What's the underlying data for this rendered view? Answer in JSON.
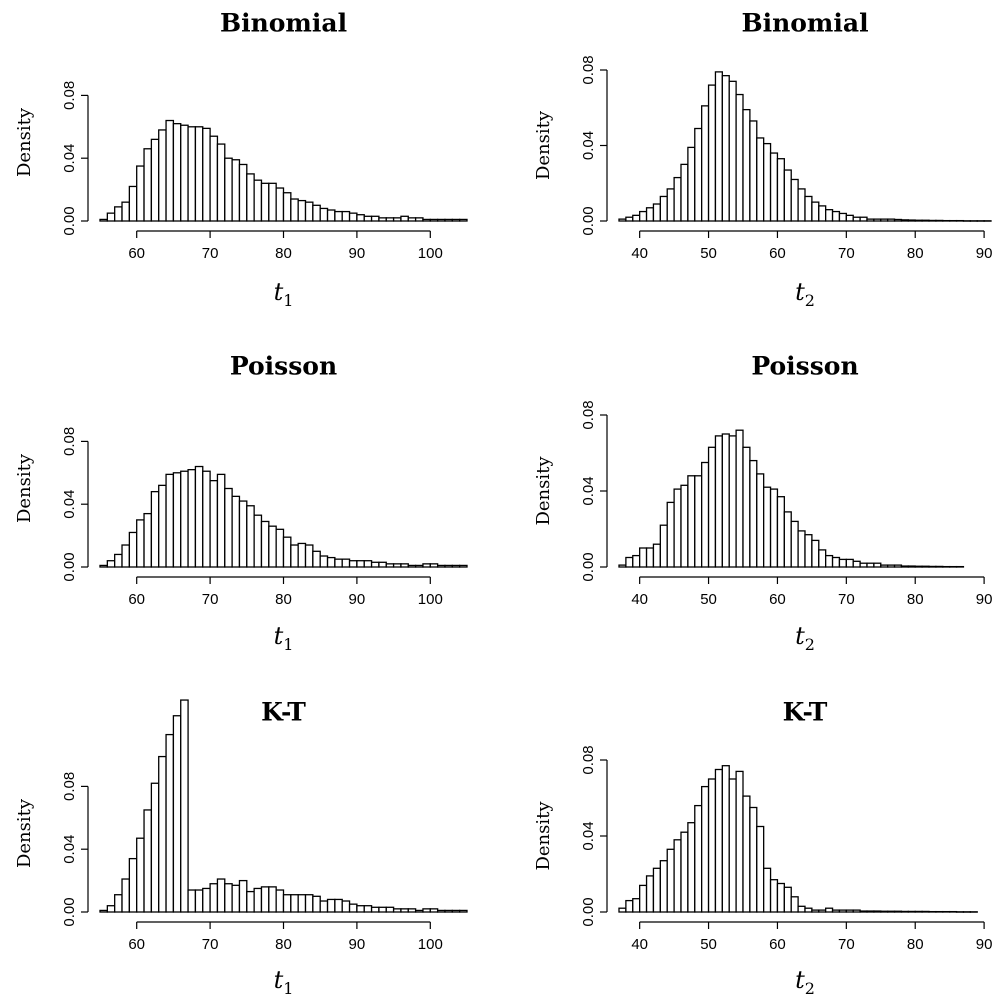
{
  "chart_data": [
    {
      "type": "bar",
      "title": "Binomial",
      "ylabel": "Density",
      "xlabel": "t",
      "xlabel_sub": "1",
      "x_start": 55,
      "bin_width": 1,
      "values": [
        0.001,
        0.005,
        0.009,
        0.012,
        0.022,
        0.035,
        0.046,
        0.052,
        0.058,
        0.064,
        0.062,
        0.061,
        0.06,
        0.06,
        0.059,
        0.054,
        0.049,
        0.04,
        0.039,
        0.036,
        0.03,
        0.026,
        0.024,
        0.024,
        0.021,
        0.018,
        0.014,
        0.013,
        0.012,
        0.01,
        0.008,
        0.007,
        0.006,
        0.006,
        0.005,
        0.004,
        0.003,
        0.003,
        0.002,
        0.002,
        0.002,
        0.003,
        0.002,
        0.002,
        0.001,
        0.001,
        0.001,
        0.001,
        0.001,
        0.001
      ],
      "xlim": [
        55,
        105
      ],
      "ylim": [
        0,
        0.1
      ],
      "xticks": [
        60,
        70,
        80,
        90,
        100
      ],
      "yticks": [
        0.0,
        0.04,
        0.08
      ],
      "ytick_labels": [
        "0.00",
        "0.04",
        "0.08"
      ],
      "grid": false
    },
    {
      "type": "bar",
      "title": "Binomial",
      "ylabel": "Density",
      "xlabel": "t",
      "xlabel_sub": "2",
      "x_start": 37,
      "bin_width": 1,
      "values": [
        0.001,
        0.002,
        0.003,
        0.005,
        0.007,
        0.009,
        0.013,
        0.017,
        0.023,
        0.03,
        0.039,
        0.049,
        0.061,
        0.072,
        0.079,
        0.077,
        0.074,
        0.067,
        0.059,
        0.053,
        0.044,
        0.041,
        0.036,
        0.033,
        0.027,
        0.022,
        0.017,
        0.013,
        0.01,
        0.008,
        0.006,
        0.005,
        0.004,
        0.003,
        0.002,
        0.002,
        0.001,
        0.001,
        0.001,
        0.001,
        0.0008,
        0.0006,
        0.0005,
        0.0004,
        0.0004,
        0.0003,
        0.0003,
        0.0002,
        0.0002,
        0.0002,
        0.0001,
        0.0001,
        0.0001,
        0.0001
      ],
      "xlim": [
        37,
        91
      ],
      "ylim": [
        0,
        0.08
      ],
      "xticks": [
        40,
        50,
        60,
        70,
        80,
        90
      ],
      "yticks": [
        0.0,
        0.04,
        0.08
      ],
      "ytick_labels": [
        "0.00",
        "0.04",
        "0.08"
      ],
      "grid": false
    },
    {
      "type": "bar",
      "title": "Poisson",
      "ylabel": "Density",
      "xlabel": "t",
      "xlabel_sub": "1",
      "x_start": 55,
      "bin_width": 1,
      "values": [
        0.001,
        0.004,
        0.008,
        0.014,
        0.022,
        0.03,
        0.034,
        0.048,
        0.052,
        0.059,
        0.06,
        0.061,
        0.062,
        0.064,
        0.061,
        0.055,
        0.059,
        0.05,
        0.045,
        0.042,
        0.039,
        0.033,
        0.029,
        0.026,
        0.024,
        0.019,
        0.014,
        0.015,
        0.014,
        0.01,
        0.007,
        0.006,
        0.005,
        0.005,
        0.004,
        0.004,
        0.004,
        0.003,
        0.003,
        0.002,
        0.002,
        0.002,
        0.001,
        0.001,
        0.002,
        0.002,
        0.001,
        0.001,
        0.001,
        0.001
      ],
      "xlim": [
        55,
        105
      ],
      "ylim": [
        0,
        0.1
      ],
      "xticks": [
        60,
        70,
        80,
        90,
        100
      ],
      "yticks": [
        0.0,
        0.04,
        0.08
      ],
      "ytick_labels": [
        "0.00",
        "0.04",
        "0.08"
      ],
      "grid": false
    },
    {
      "type": "bar",
      "title": "Poisson",
      "ylabel": "Density",
      "xlabel": "t",
      "xlabel_sub": "2",
      "x_start": 37,
      "bin_width": 1,
      "values": [
        0.001,
        0.005,
        0.006,
        0.01,
        0.01,
        0.012,
        0.022,
        0.034,
        0.041,
        0.043,
        0.048,
        0.048,
        0.055,
        0.063,
        0.069,
        0.07,
        0.069,
        0.072,
        0.063,
        0.056,
        0.049,
        0.042,
        0.041,
        0.037,
        0.029,
        0.024,
        0.019,
        0.017,
        0.014,
        0.009,
        0.006,
        0.005,
        0.004,
        0.004,
        0.003,
        0.002,
        0.002,
        0.002,
        0.001,
        0.001,
        0.001,
        0.0005,
        0.0005,
        0.0004,
        0.0004,
        0.0003,
        0.0003,
        0.0002,
        0.0002,
        0.0002
      ],
      "xlim": [
        37,
        91
      ],
      "ylim": [
        0,
        0.08
      ],
      "xticks": [
        40,
        50,
        60,
        70,
        80,
        90
      ],
      "yticks": [
        0.0,
        0.04,
        0.08
      ],
      "ytick_labels": [
        "0.00",
        "0.04",
        "0.08"
      ],
      "grid": false
    },
    {
      "type": "bar",
      "title": "K-T",
      "ylabel": "Density",
      "xlabel": "t",
      "xlabel_sub": "1",
      "x_start": 55,
      "bin_width": 1,
      "values": [
        0.001,
        0.004,
        0.011,
        0.021,
        0.034,
        0.047,
        0.065,
        0.082,
        0.099,
        0.113,
        0.125,
        0.135,
        0.014,
        0.014,
        0.015,
        0.018,
        0.021,
        0.018,
        0.017,
        0.02,
        0.013,
        0.015,
        0.016,
        0.016,
        0.014,
        0.011,
        0.011,
        0.011,
        0.011,
        0.01,
        0.007,
        0.008,
        0.008,
        0.007,
        0.005,
        0.004,
        0.004,
        0.003,
        0.003,
        0.003,
        0.002,
        0.002,
        0.002,
        0.001,
        0.002,
        0.002,
        0.001,
        0.001,
        0.001,
        0.001
      ],
      "xlim": [
        55,
        105
      ],
      "ylim": [
        0,
        0.1
      ],
      "xticks": [
        60,
        70,
        80,
        90,
        100
      ],
      "yticks": [
        0.0,
        0.04,
        0.08
      ],
      "ytick_labels": [
        "0.00",
        "0.04",
        "0.08"
      ],
      "grid": false
    },
    {
      "type": "bar",
      "title": "K-T",
      "ylabel": "Density",
      "xlabel": "t",
      "xlabel_sub": "2",
      "x_start": 37,
      "bin_width": 1,
      "values": [
        0.002,
        0.006,
        0.007,
        0.014,
        0.019,
        0.023,
        0.027,
        0.033,
        0.038,
        0.042,
        0.047,
        0.056,
        0.066,
        0.07,
        0.075,
        0.077,
        0.07,
        0.074,
        0.061,
        0.055,
        0.045,
        0.023,
        0.017,
        0.015,
        0.013,
        0.008,
        0.003,
        0.002,
        0.001,
        0.001,
        0.002,
        0.001,
        0.001,
        0.001,
        0.001,
        0.0005,
        0.0005,
        0.0005,
        0.0004,
        0.0004,
        0.0004,
        0.0003,
        0.0003,
        0.0003,
        0.0003,
        0.0002,
        0.0002,
        0.0002,
        0.0002,
        0.0001,
        0.0001,
        0.0001
      ],
      "xlim": [
        37,
        91
      ],
      "ylim": [
        0,
        0.08
      ],
      "xticks": [
        40,
        50,
        60,
        70,
        80,
        90
      ],
      "yticks": [
        0.0,
        0.04,
        0.08
      ],
      "ytick_labels": [
        "0.00",
        "0.04",
        "0.08"
      ],
      "grid": false
    }
  ]
}
